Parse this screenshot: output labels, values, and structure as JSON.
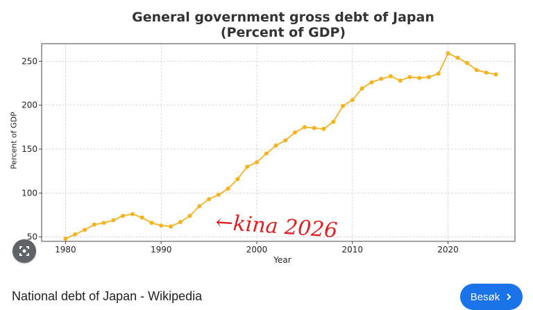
{
  "chart_data": {
    "type": "line",
    "title_line1": "General government gross debt of Japan",
    "title_line2": "(Percent of GDP)",
    "xlabel": "Year",
    "ylabel": "Percent of GDP",
    "xlim": [
      1980,
      2025
    ],
    "ylim": [
      45,
      270
    ],
    "x_ticks": [
      1980,
      1990,
      2000,
      2010,
      2020
    ],
    "y_ticks": [
      50,
      100,
      150,
      200,
      250
    ],
    "grid": true,
    "color": "#f5b11e",
    "x": [
      1980,
      1981,
      1982,
      1983,
      1984,
      1985,
      1986,
      1987,
      1988,
      1989,
      1990,
      1991,
      1992,
      1993,
      1994,
      1995,
      1996,
      1997,
      1998,
      1999,
      2000,
      2001,
      2002,
      2003,
      2004,
      2005,
      2006,
      2007,
      2008,
      2009,
      2010,
      2011,
      2012,
      2013,
      2014,
      2015,
      2016,
      2017,
      2018,
      2019,
      2020,
      2021,
      2022,
      2023,
      2024,
      2025
    ],
    "values": [
      48,
      53,
      58,
      64,
      66,
      69,
      74,
      76,
      72,
      66,
      63,
      62,
      67,
      74,
      85,
      93,
      98,
      105,
      116,
      130,
      135,
      145,
      154,
      160,
      169,
      175,
      174,
      173,
      181,
      199,
      206,
      219,
      226,
      230,
      233,
      228,
      232,
      231,
      232,
      236,
      259,
      254,
      248,
      240,
      237,
      235
    ],
    "annotation": "←kina 2026"
  },
  "caption": {
    "source_title": "National debt of Japan - Wikipedia",
    "visit_label": "Besøk"
  },
  "icons": {
    "lens": "image-search-icon",
    "arrow": "chevron-right-icon"
  }
}
